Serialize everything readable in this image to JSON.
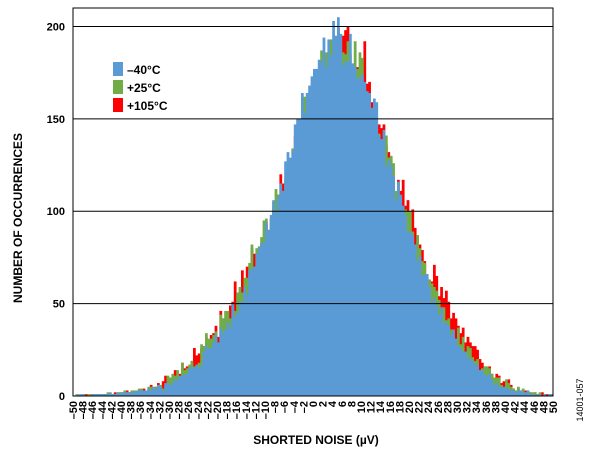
{
  "figure_id": "14001-057",
  "colors": {
    "neg40": "#5b9bd5",
    "p25": "#70ad47",
    "p105": "#ff0000",
    "grid": "#000000"
  },
  "chart_data": {
    "type": "bar",
    "xlabel": "SHORTED NOISE (µV)",
    "ylabel": "NUMBER OF OCCURRENCES",
    "xlim": [
      -50,
      50
    ],
    "ylim": [
      0,
      210
    ],
    "x_ticks": [
      "–50",
      "–48",
      "–46",
      "–44",
      "–42",
      "–40",
      "–38",
      "–36",
      "–34",
      "–32",
      "–30",
      "–28",
      "–26",
      "–24",
      "–22",
      "–20",
      "–18",
      "–16",
      "–14",
      "–12",
      "–10",
      "–8",
      "–6",
      "–4",
      "–2",
      "0",
      "2",
      "4",
      "6",
      "8",
      "10",
      "12",
      "14",
      "16",
      "18",
      "20",
      "22",
      "24",
      "26",
      "28",
      "30",
      "32",
      "34",
      "36",
      "38",
      "40",
      "42",
      "44",
      "46",
      "48",
      "50"
    ],
    "y_ticks": [
      "0",
      "50",
      "100",
      "150",
      "200"
    ],
    "y_tick_values": [
      0,
      50,
      100,
      150,
      200
    ],
    "bin_start": -50,
    "bin_width": 0.5,
    "series": [
      {
        "name": "+105°C",
        "color": "#ff0000",
        "values": [
          0,
          0,
          0,
          0,
          1,
          1,
          0,
          1,
          1,
          0,
          1,
          0,
          1,
          1,
          1,
          1,
          1,
          2,
          1,
          2,
          2,
          2,
          3,
          2,
          3,
          2,
          2,
          3,
          3,
          4,
          2,
          4,
          6,
          4,
          5,
          7,
          5,
          8,
          11,
          6,
          10,
          9,
          14,
          12,
          12,
          18,
          15,
          16,
          14,
          19,
          26,
          22,
          23,
          26,
          27,
          32,
          24,
          33,
          34,
          38,
          32,
          46,
          42,
          32,
          43,
          49,
          51,
          62,
          56,
          44,
          68,
          61,
          70,
          60,
          80,
          77,
          70,
          79,
          82,
          85,
          93,
          80,
          96,
          101,
          91,
          109,
          120,
          115,
          116,
          114,
          120,
          124,
          141,
          145,
          140,
          146,
          144,
          149,
          148,
          146,
          158,
          157,
          163,
          175,
          177,
          169,
          182,
          177,
          174,
          181,
          199,
          189,
          195,
          198,
          200,
          180,
          180,
          177,
          178,
          177,
          181,
          192,
          169,
          170,
          159,
          143,
          143,
          147,
          145,
          147,
          136,
          132,
          129,
          117,
          109,
          117,
          111,
          117,
          103,
          106,
          97,
          101,
          91,
          87,
          82,
          79,
          73,
          64,
          63,
          62,
          71,
          65,
          54,
          59,
          53,
          57,
          51,
          42,
          45,
          42,
          38,
          34,
          37,
          29,
          32,
          29,
          27,
          27,
          25,
          20,
          18,
          16,
          16,
          16,
          12,
          10,
          12,
          11,
          7,
          8,
          7,
          9,
          6,
          4,
          3,
          4,
          3,
          3,
          3,
          3,
          2,
          1,
          2,
          1,
          1,
          2,
          1,
          1,
          0,
          1
        ]
      },
      {
        "name": "+25°C",
        "color": "#70ad47",
        "values": [
          0,
          0,
          1,
          0,
          0,
          0,
          1,
          1,
          0,
          1,
          1,
          1,
          1,
          1,
          2,
          1,
          1,
          1,
          2,
          2,
          2,
          3,
          2,
          2,
          3,
          3,
          3,
          4,
          4,
          2,
          2,
          5,
          5,
          4,
          5,
          5,
          6,
          4,
          5,
          11,
          10,
          12,
          11,
          14,
          10,
          18,
          14,
          15,
          17,
          19,
          16,
          14,
          18,
          28,
          27,
          34,
          31,
          31,
          33,
          35,
          27,
          44,
          42,
          46,
          46,
          42,
          50,
          46,
          56,
          59,
          56,
          64,
          64,
          72,
          82,
          70,
          80,
          81,
          86,
          95,
          96,
          89,
          95,
          105,
          112,
          109,
          108,
          110,
          118,
          125,
          118,
          134,
          132,
          143,
          146,
          147,
          162,
          156,
          158,
          160,
          174,
          168,
          176,
          187,
          177,
          186,
          184,
          193,
          184,
          186,
          198,
          195,
          186,
          185,
          192,
          185,
          175,
          192,
          177,
          186,
          183,
          167,
          160,
          158,
          149,
          143,
          137,
          142,
          139,
          137,
          141,
          129,
          130,
          126,
          111,
          116,
          102,
          100,
          101,
          100,
          100,
          89,
          81,
          87,
          80,
          73,
          72,
          64,
          63,
          61,
          59,
          57,
          52,
          47,
          48,
          41,
          42,
          36,
          32,
          29,
          37,
          28,
          32,
          24,
          27,
          26,
          21,
          19,
          20,
          14,
          15,
          16,
          16,
          15,
          12,
          10,
          10,
          10,
          6,
          4,
          9,
          7,
          5,
          4,
          3,
          5,
          3,
          4,
          2,
          3,
          2,
          2,
          2,
          1,
          2,
          0,
          1,
          0,
          1,
          0
        ]
      },
      {
        "name": "–40°C",
        "color": "#5b9bd5",
        "values": [
          0,
          1,
          0,
          1,
          1,
          0,
          0,
          0,
          1,
          1,
          1,
          1,
          1,
          1,
          1,
          2,
          1,
          1,
          2,
          1,
          2,
          2,
          2,
          2,
          2,
          2,
          3,
          3,
          3,
          3,
          3,
          4,
          3,
          5,
          4,
          6,
          5,
          3,
          7,
          7,
          6,
          7,
          9,
          9,
          11,
          11,
          12,
          12,
          15,
          16,
          15,
          17,
          15,
          17,
          24,
          27,
          26,
          26,
          29,
          33,
          29,
          37,
          34,
          36,
          40,
          37,
          50,
          43,
          45,
          51,
          51,
          59,
          55,
          68,
          69,
          70,
          77,
          80,
          83,
          83,
          94,
          90,
          98,
          106,
          100,
          108,
          115,
          111,
          127,
          132,
          129,
          133,
          147,
          150,
          150,
          164,
          153,
          164,
          168,
          173,
          177,
          177,
          182,
          181,
          194,
          178,
          193,
          184,
          203,
          195,
          205,
          196,
          179,
          181,
          181,
          196,
          180,
          178,
          172,
          172,
          174,
          170,
          165,
          164,
          156,
          161,
          159,
          141,
          139,
          144,
          124,
          128,
          125,
          119,
          106,
          116,
          109,
          103,
          98,
          89,
          89,
          87,
          82,
          73,
          76,
          65,
          66,
          66,
          59,
          51,
          53,
          49,
          44,
          48,
          39,
          40,
          38,
          33,
          36,
          31,
          27,
          26,
          24,
          24,
          21,
          20,
          19,
          17,
          17,
          14,
          14,
          12,
          11,
          12,
          9,
          6,
          7,
          5,
          5,
          5,
          4,
          4,
          3,
          3,
          2,
          3,
          3,
          2,
          2,
          3,
          1,
          1,
          1,
          0,
          1,
          0,
          1,
          0,
          1,
          1
        ]
      }
    ],
    "legend": {
      "placement": "top-left",
      "entries": [
        {
          "label": "–40°C",
          "color": "#5b9bd5"
        },
        {
          "label": "+25°C",
          "color": "#70ad47"
        },
        {
          "label": "+105°C",
          "color": "#ff0000"
        }
      ]
    },
    "grid": {
      "horizontal": true,
      "vertical": false
    }
  }
}
